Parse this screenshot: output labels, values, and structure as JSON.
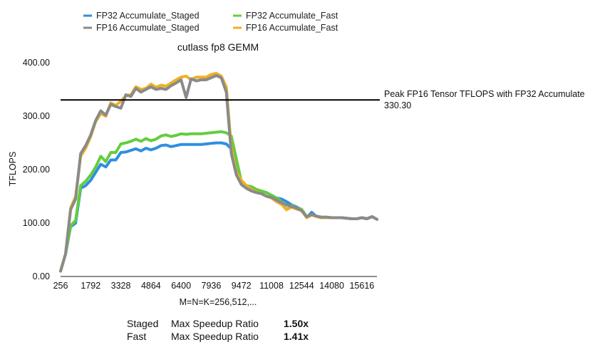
{
  "chart_data": {
    "type": "line",
    "title": "cutlass fp8 GEMM",
    "xlabel": "M=N=K=256,512,...",
    "ylabel": "TFLOPS",
    "ylim": [
      0,
      400
    ],
    "y_ticks": [
      "0.00",
      "100.00",
      "200.00",
      "300.00",
      "400.00"
    ],
    "x_ticks": [
      "256",
      "1792",
      "3328",
      "4864",
      "6400",
      "7936",
      "9472",
      "11008",
      "12544",
      "14080",
      "15616"
    ],
    "x_tick_values": [
      256,
      1792,
      3328,
      4864,
      6400,
      7936,
      9472,
      11008,
      12544,
      14080,
      15616
    ],
    "x": [
      256,
      512,
      768,
      1024,
      1280,
      1536,
      1792,
      2048,
      2304,
      2560,
      2816,
      3072,
      3328,
      3584,
      3840,
      4096,
      4352,
      4608,
      4864,
      5120,
      5376,
      5632,
      5888,
      6144,
      6400,
      6656,
      6912,
      7168,
      7424,
      7680,
      7936,
      8192,
      8448,
      8704,
      8960,
      9216,
      9472,
      9728,
      9984,
      10240,
      10496,
      10752,
      11008,
      11264,
      11520,
      11776,
      12032,
      12288,
      12544,
      12800,
      13056,
      13312,
      13568,
      13824,
      14080,
      14336,
      14592,
      14848,
      15104,
      15360,
      15616,
      15872,
      16128,
      16384
    ],
    "grid": false,
    "legend_position": "top",
    "series": [
      {
        "name": "FP32 Accumulate_Staged",
        "color": "#2e8fe0",
        "values": [
          10,
          42,
          93,
          100,
          165,
          170,
          180,
          195,
          210,
          205,
          218,
          218,
          232,
          233,
          236,
          239,
          235,
          240,
          237,
          240,
          245,
          246,
          243,
          245,
          247,
          247,
          247,
          247,
          247,
          248,
          249,
          250,
          250,
          248,
          239,
          216,
          175,
          168,
          165,
          160,
          160,
          157,
          152,
          147,
          145,
          140,
          134,
          130,
          125,
          110,
          120,
          112,
          110,
          110,
          110,
          110,
          110,
          109,
          108,
          108,
          110,
          108,
          112,
          107
        ]
      },
      {
        "name": "FP32 Accumulate_Fast",
        "color": "#63cd3e",
        "values": [
          10,
          42,
          95,
          105,
          170,
          178,
          190,
          205,
          225,
          215,
          232,
          232,
          248,
          250,
          253,
          257,
          253,
          258,
          254,
          257,
          263,
          265,
          262,
          264,
          267,
          266,
          267,
          267,
          267,
          268,
          269,
          270,
          271,
          269,
          263,
          220,
          178,
          170,
          168,
          163,
          160,
          157,
          152,
          147,
          140,
          125,
          133,
          128,
          126,
          112,
          115,
          113,
          111,
          111,
          110,
          110,
          110,
          109,
          108,
          108,
          110,
          108,
          112,
          107
        ]
      },
      {
        "name": "FP16 Accumulate_Staged",
        "color": "#8a8a8a",
        "values": [
          10,
          42,
          125,
          145,
          230,
          245,
          265,
          292,
          310,
          302,
          322,
          318,
          315,
          340,
          337,
          352,
          345,
          350,
          355,
          350,
          352,
          350,
          357,
          362,
          368,
          335,
          370,
          366,
          368,
          368,
          372,
          376,
          372,
          345,
          230,
          190,
          172,
          165,
          160,
          157,
          155,
          150,
          148,
          143,
          138,
          134,
          131,
          128,
          123,
          112,
          116,
          113,
          111,
          111,
          110,
          110,
          110,
          109,
          108,
          108,
          110,
          108,
          112,
          107
        ]
      },
      {
        "name": "FP16 Accumulate_Fast",
        "color": "#f0b024",
        "values": [
          10,
          42,
          128,
          150,
          225,
          240,
          262,
          290,
          305,
          300,
          325,
          320,
          328,
          338,
          340,
          355,
          350,
          352,
          360,
          354,
          358,
          356,
          362,
          368,
          373,
          375,
          368,
          373,
          373,
          373,
          378,
          380,
          375,
          355,
          240,
          195,
          180,
          170,
          162,
          158,
          155,
          150,
          147,
          140,
          135,
          125,
          130,
          126,
          124,
          110,
          115,
          112,
          110,
          110,
          110,
          110,
          110,
          109,
          108,
          108,
          110,
          108,
          112,
          107
        ]
      }
    ],
    "reference_line": {
      "label": "Peak FP16 Tensor TFLOPS with FP32 Accumulate",
      "value_label": "330.30",
      "value": 330.3,
      "color": "#000000"
    }
  },
  "footer": {
    "rows": [
      {
        "mode": "Staged",
        "label": "Max Speedup Ratio",
        "value": "1.50x"
      },
      {
        "mode": "Fast",
        "label": "Max Speedup Ratio",
        "value": "1.41x"
      }
    ]
  }
}
